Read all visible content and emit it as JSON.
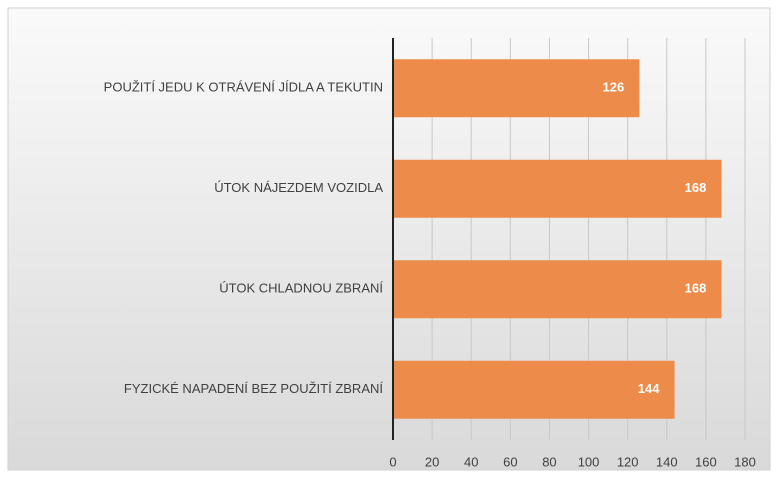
{
  "chart_data": {
    "type": "bar",
    "orientation": "horizontal",
    "categories": [
      "POUŽITÍ JEDU K OTRÁVENÍ JÍDLA A TEKUTIN",
      "ÚTOK NÁJEZDEM VOZIDLA",
      "ÚTOK CHLADNOU ZBRANÍ",
      "FYZICKÉ NAPADENÍ BEZ POUŽITÍ ZBRANÍ"
    ],
    "values": [
      126,
      168,
      168,
      144
    ],
    "color": "#ed8c4a",
    "xlim": [
      0,
      180
    ],
    "xticks": [
      0,
      20,
      40,
      60,
      80,
      100,
      120,
      140,
      160,
      180
    ],
    "grid": true
  }
}
